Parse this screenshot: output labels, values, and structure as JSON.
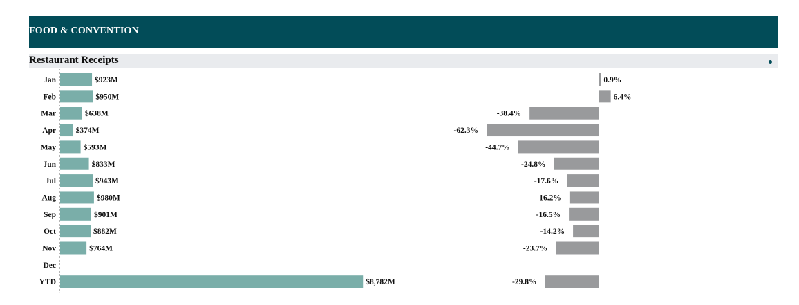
{
  "header": {
    "title": "FOOD & CONVENTION"
  },
  "section": {
    "title": "Restaurant Receipts"
  },
  "colors": {
    "banner": "#024c58",
    "section_bg": "#e9ebee",
    "receipts_bar": "#7aaea9",
    "change_bar": "#999a9c"
  },
  "chart_data": {
    "type": "bar",
    "title": "Restaurant Receipts",
    "categories": [
      "Jan",
      "Feb",
      "Mar",
      "Apr",
      "May",
      "Jun",
      "Jul",
      "Aug",
      "Sep",
      "Oct",
      "Nov",
      "Dec",
      "YTD"
    ],
    "series": [
      {
        "values": [
          923,
          950,
          638,
          374,
          593,
          833,
          943,
          980,
          901,
          882,
          764,
          null,
          8782
        ],
        "labels": [
          "$923M",
          "$950M",
          "$638M",
          "$374M",
          "$593M",
          "$833M",
          "$943M",
          "$980M",
          "$901M",
          "$882M",
          "$764M",
          "",
          "$8,782M"
        ]
      },
      {
        "values": [
          0.9,
          6.4,
          -38.4,
          -62.3,
          -44.7,
          -24.8,
          -17.6,
          -16.2,
          -16.5,
          -14.2,
          -23.7,
          null,
          -29.8
        ],
        "labels": [
          "0.9%",
          "6.4%",
          "-38.4%",
          "-62.3%",
          "-44.7%",
          "-24.8%",
          "-17.6%",
          "-16.2%",
          "-16.5%",
          "-14.2%",
          "-23.7%",
          "",
          "-29.8%"
        ]
      }
    ]
  }
}
